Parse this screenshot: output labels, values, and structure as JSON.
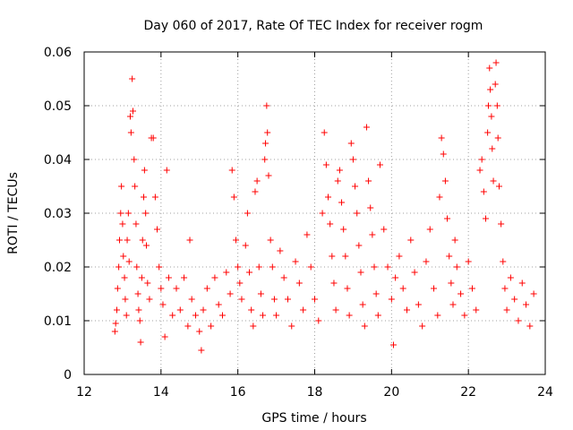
{
  "chart_data": {
    "type": "scatter",
    "title": "Day 060 of 2017, Rate Of TEC Index for receiver rogm",
    "xlabel": "GPS time / hours",
    "ylabel": "ROTI / TECUs",
    "xlim": [
      12,
      24
    ],
    "ylim": [
      0,
      0.06
    ],
    "x_ticks": [
      "12",
      "14",
      "16",
      "18",
      "20",
      "22",
      "24"
    ],
    "y_ticks": [
      "0",
      "0.01",
      "0.02",
      "0.03",
      "0.04",
      "0.05",
      "0.06"
    ],
    "grid": true,
    "marker": "+",
    "color": "#ff0000",
    "series": [
      {
        "name": "ROTI",
        "points": [
          [
            12.8,
            0.008
          ],
          [
            12.82,
            0.0095
          ],
          [
            12.85,
            0.012
          ],
          [
            12.87,
            0.016
          ],
          [
            12.9,
            0.02
          ],
          [
            12.92,
            0.025
          ],
          [
            12.95,
            0.03
          ],
          [
            12.97,
            0.035
          ],
          [
            13.0,
            0.028
          ],
          [
            13.02,
            0.022
          ],
          [
            13.05,
            0.018
          ],
          [
            13.07,
            0.014
          ],
          [
            13.1,
            0.011
          ],
          [
            13.12,
            0.025
          ],
          [
            13.15,
            0.03
          ],
          [
            13.17,
            0.021
          ],
          [
            13.2,
            0.048
          ],
          [
            13.22,
            0.045
          ],
          [
            13.25,
            0.055
          ],
          [
            13.27,
            0.049
          ],
          [
            13.3,
            0.04
          ],
          [
            13.32,
            0.035
          ],
          [
            13.35,
            0.028
          ],
          [
            13.37,
            0.02
          ],
          [
            13.4,
            0.015
          ],
          [
            13.42,
            0.012
          ],
          [
            13.45,
            0.01
          ],
          [
            13.47,
            0.006
          ],
          [
            13.5,
            0.018
          ],
          [
            13.52,
            0.025
          ],
          [
            13.55,
            0.033
          ],
          [
            13.57,
            0.038
          ],
          [
            13.6,
            0.03
          ],
          [
            13.62,
            0.024
          ],
          [
            13.65,
            0.017
          ],
          [
            13.7,
            0.014
          ],
          [
            13.75,
            0.044
          ],
          [
            13.8,
            0.044
          ],
          [
            13.85,
            0.033
          ],
          [
            13.9,
            0.027
          ],
          [
            13.95,
            0.02
          ],
          [
            14.0,
            0.016
          ],
          [
            14.05,
            0.013
          ],
          [
            14.1,
            0.007
          ],
          [
            14.15,
            0.038
          ],
          [
            14.2,
            0.018
          ],
          [
            14.3,
            0.011
          ],
          [
            14.4,
            0.016
          ],
          [
            14.5,
            0.012
          ],
          [
            14.6,
            0.018
          ],
          [
            14.7,
            0.009
          ],
          [
            14.75,
            0.025
          ],
          [
            14.8,
            0.014
          ],
          [
            14.9,
            0.011
          ],
          [
            15.0,
            0.008
          ],
          [
            15.05,
            0.0045
          ],
          [
            15.1,
            0.012
          ],
          [
            15.2,
            0.016
          ],
          [
            15.3,
            0.009
          ],
          [
            15.4,
            0.018
          ],
          [
            15.5,
            0.013
          ],
          [
            15.6,
            0.011
          ],
          [
            15.7,
            0.019
          ],
          [
            15.8,
            0.015
          ],
          [
            15.85,
            0.038
          ],
          [
            15.9,
            0.033
          ],
          [
            15.95,
            0.025
          ],
          [
            16.0,
            0.02
          ],
          [
            16.05,
            0.017
          ],
          [
            16.1,
            0.014
          ],
          [
            16.2,
            0.024
          ],
          [
            16.25,
            0.03
          ],
          [
            16.3,
            0.019
          ],
          [
            16.35,
            0.012
          ],
          [
            16.4,
            0.009
          ],
          [
            16.45,
            0.034
          ],
          [
            16.5,
            0.036
          ],
          [
            16.55,
            0.02
          ],
          [
            16.6,
            0.015
          ],
          [
            16.65,
            0.011
          ],
          [
            16.7,
            0.04
          ],
          [
            16.72,
            0.043
          ],
          [
            16.75,
            0.05
          ],
          [
            16.77,
            0.045
          ],
          [
            16.8,
            0.037
          ],
          [
            16.85,
            0.025
          ],
          [
            16.9,
            0.02
          ],
          [
            16.95,
            0.014
          ],
          [
            17.0,
            0.011
          ],
          [
            17.1,
            0.023
          ],
          [
            17.2,
            0.018
          ],
          [
            17.3,
            0.014
          ],
          [
            17.4,
            0.009
          ],
          [
            17.5,
            0.021
          ],
          [
            17.6,
            0.017
          ],
          [
            17.7,
            0.012
          ],
          [
            17.8,
            0.026
          ],
          [
            17.9,
            0.02
          ],
          [
            18.0,
            0.014
          ],
          [
            18.1,
            0.01
          ],
          [
            18.2,
            0.03
          ],
          [
            18.25,
            0.045
          ],
          [
            18.3,
            0.039
          ],
          [
            18.35,
            0.033
          ],
          [
            18.4,
            0.028
          ],
          [
            18.45,
            0.022
          ],
          [
            18.5,
            0.017
          ],
          [
            18.55,
            0.012
          ],
          [
            18.6,
            0.036
          ],
          [
            18.65,
            0.038
          ],
          [
            18.7,
            0.032
          ],
          [
            18.75,
            0.027
          ],
          [
            18.8,
            0.022
          ],
          [
            18.85,
            0.016
          ],
          [
            18.9,
            0.011
          ],
          [
            18.95,
            0.043
          ],
          [
            19.0,
            0.04
          ],
          [
            19.05,
            0.035
          ],
          [
            19.1,
            0.03
          ],
          [
            19.15,
            0.024
          ],
          [
            19.2,
            0.019
          ],
          [
            19.25,
            0.013
          ],
          [
            19.3,
            0.009
          ],
          [
            19.35,
            0.046
          ],
          [
            19.4,
            0.036
          ],
          [
            19.45,
            0.031
          ],
          [
            19.5,
            0.026
          ],
          [
            19.55,
            0.02
          ],
          [
            19.6,
            0.015
          ],
          [
            19.65,
            0.011
          ],
          [
            19.7,
            0.039
          ],
          [
            19.8,
            0.027
          ],
          [
            19.9,
            0.02
          ],
          [
            20.0,
            0.014
          ],
          [
            20.05,
            0.0055
          ],
          [
            20.1,
            0.018
          ],
          [
            20.2,
            0.022
          ],
          [
            20.3,
            0.016
          ],
          [
            20.4,
            0.012
          ],
          [
            20.5,
            0.025
          ],
          [
            20.6,
            0.019
          ],
          [
            20.7,
            0.013
          ],
          [
            20.8,
            0.009
          ],
          [
            20.9,
            0.021
          ],
          [
            21.0,
            0.027
          ],
          [
            21.1,
            0.016
          ],
          [
            21.2,
            0.011
          ],
          [
            21.25,
            0.033
          ],
          [
            21.3,
            0.044
          ],
          [
            21.35,
            0.041
          ],
          [
            21.4,
            0.036
          ],
          [
            21.45,
            0.029
          ],
          [
            21.5,
            0.022
          ],
          [
            21.55,
            0.017
          ],
          [
            21.6,
            0.013
          ],
          [
            21.65,
            0.025
          ],
          [
            21.7,
            0.02
          ],
          [
            21.8,
            0.015
          ],
          [
            21.9,
            0.011
          ],
          [
            22.0,
            0.021
          ],
          [
            22.1,
            0.016
          ],
          [
            22.2,
            0.012
          ],
          [
            22.3,
            0.038
          ],
          [
            22.35,
            0.04
          ],
          [
            22.4,
            0.034
          ],
          [
            22.45,
            0.029
          ],
          [
            22.5,
            0.045
          ],
          [
            22.52,
            0.05
          ],
          [
            22.55,
            0.057
          ],
          [
            22.57,
            0.053
          ],
          [
            22.6,
            0.048
          ],
          [
            22.62,
            0.042
          ],
          [
            22.65,
            0.036
          ],
          [
            22.7,
            0.054
          ],
          [
            22.72,
            0.058
          ],
          [
            22.75,
            0.05
          ],
          [
            22.77,
            0.044
          ],
          [
            22.8,
            0.035
          ],
          [
            22.85,
            0.028
          ],
          [
            22.9,
            0.021
          ],
          [
            22.95,
            0.016
          ],
          [
            23.0,
            0.012
          ],
          [
            23.1,
            0.018
          ],
          [
            23.2,
            0.014
          ],
          [
            23.3,
            0.01
          ],
          [
            23.4,
            0.017
          ],
          [
            23.5,
            0.013
          ],
          [
            23.6,
            0.009
          ],
          [
            23.7,
            0.015
          ]
        ]
      }
    ]
  }
}
